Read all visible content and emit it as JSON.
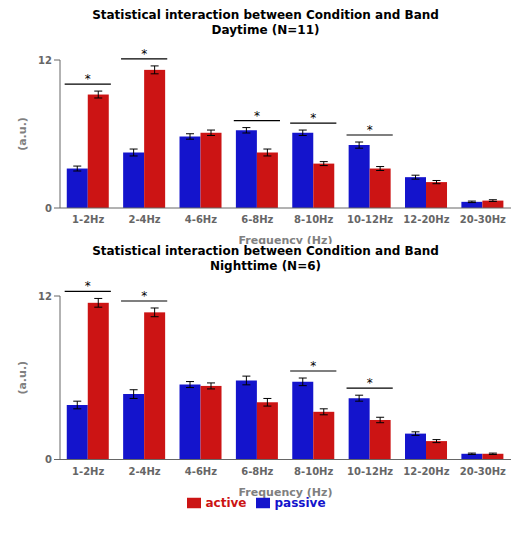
{
  "chart_data": [
    {
      "type": "bar",
      "title": "Statistical interaction between Condition and Band",
      "subtitle": "Daytime (N=11)",
      "categories": [
        "1-2Hz",
        "2-4Hz",
        "4-6Hz",
        "6-8Hz",
        "8-10Hz",
        "10-12Hz",
        "12-20Hz",
        "20-30Hz"
      ],
      "x_label": "Frequency (Hz)",
      "y_label": "(a.u.)",
      "ylim": [
        0,
        12
      ],
      "yticks": [
        0,
        12
      ],
      "grid": false,
      "series": [
        {
          "name": "passive",
          "color": "#1414CC",
          "values": [
            3.2,
            4.5,
            5.8,
            6.3,
            6.1,
            5.1,
            2.5,
            0.5
          ],
          "errors": [
            0.2,
            0.28,
            0.22,
            0.22,
            0.22,
            0.25,
            0.16,
            0.06
          ]
        },
        {
          "name": "active",
          "color": "#CC1414",
          "values": [
            9.2,
            11.2,
            6.1,
            4.5,
            3.6,
            3.2,
            2.1,
            0.6
          ],
          "errors": [
            0.28,
            0.32,
            0.22,
            0.28,
            0.16,
            0.16,
            0.13,
            0.07
          ]
        }
      ],
      "annotations": [
        {
          "category": "1-2Hz",
          "text": "*"
        },
        {
          "category": "2-4Hz",
          "text": "*"
        },
        {
          "category": "6-8Hz",
          "text": "*"
        },
        {
          "category": "8-10Hz",
          "text": "*"
        },
        {
          "category": "10-12Hz",
          "text": "*"
        }
      ]
    },
    {
      "type": "bar",
      "title": "Statistical interaction between Condition and Band",
      "subtitle": "Nighttime (N=6)",
      "categories": [
        "1-2Hz",
        "2-4Hz",
        "4-6Hz",
        "6-8Hz",
        "8-10Hz",
        "10-12Hz",
        "12-20Hz",
        "20-30Hz"
      ],
      "x_label": "Frequency (Hz)",
      "y_label": "(a.u.)",
      "ylim": [
        0,
        12
      ],
      "yticks": [
        0,
        12
      ],
      "grid": false,
      "legend": "bottom",
      "series": [
        {
          "name": "passive",
          "color": "#1414CC",
          "values": [
            4.0,
            4.8,
            5.5,
            5.8,
            5.7,
            4.5,
            1.9,
            0.42
          ],
          "errors": [
            0.28,
            0.32,
            0.22,
            0.32,
            0.28,
            0.22,
            0.13,
            0.05
          ]
        },
        {
          "name": "active",
          "color": "#CC1414",
          "values": [
            11.5,
            10.8,
            5.4,
            4.2,
            3.5,
            2.9,
            1.35,
            0.42
          ],
          "errors": [
            0.32,
            0.32,
            0.22,
            0.28,
            0.22,
            0.2,
            0.11,
            0.05
          ]
        }
      ],
      "annotations": [
        {
          "category": "1-2Hz",
          "text": "*"
        },
        {
          "category": "2-4Hz",
          "text": "*"
        },
        {
          "category": "8-10Hz",
          "text": "*"
        },
        {
          "category": "10-12Hz",
          "text": "*"
        }
      ]
    }
  ]
}
